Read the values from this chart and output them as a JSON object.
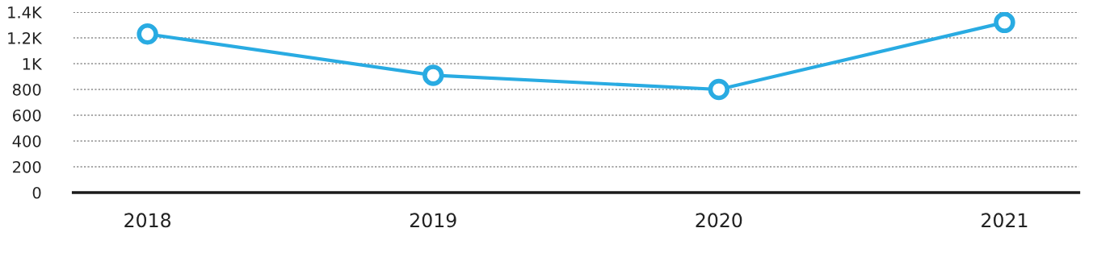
{
  "chart_data": {
    "type": "line",
    "categories": [
      "2018",
      "2019",
      "2020",
      "2021"
    ],
    "series": [
      {
        "color": "#29abe2",
        "values": [
          1230,
          910,
          800,
          1320
        ]
      }
    ],
    "ylim": [
      0,
      1400
    ],
    "yticks": [
      0,
      200,
      400,
      600,
      800,
      {
        "value": 1000,
        "label": "1K"
      },
      {
        "value": 1200,
        "label": "1.2K"
      },
      {
        "value": 1400,
        "label": "1.4K"
      }
    ],
    "grid": "y",
    "marker": "circle",
    "line_style": "solid"
  }
}
